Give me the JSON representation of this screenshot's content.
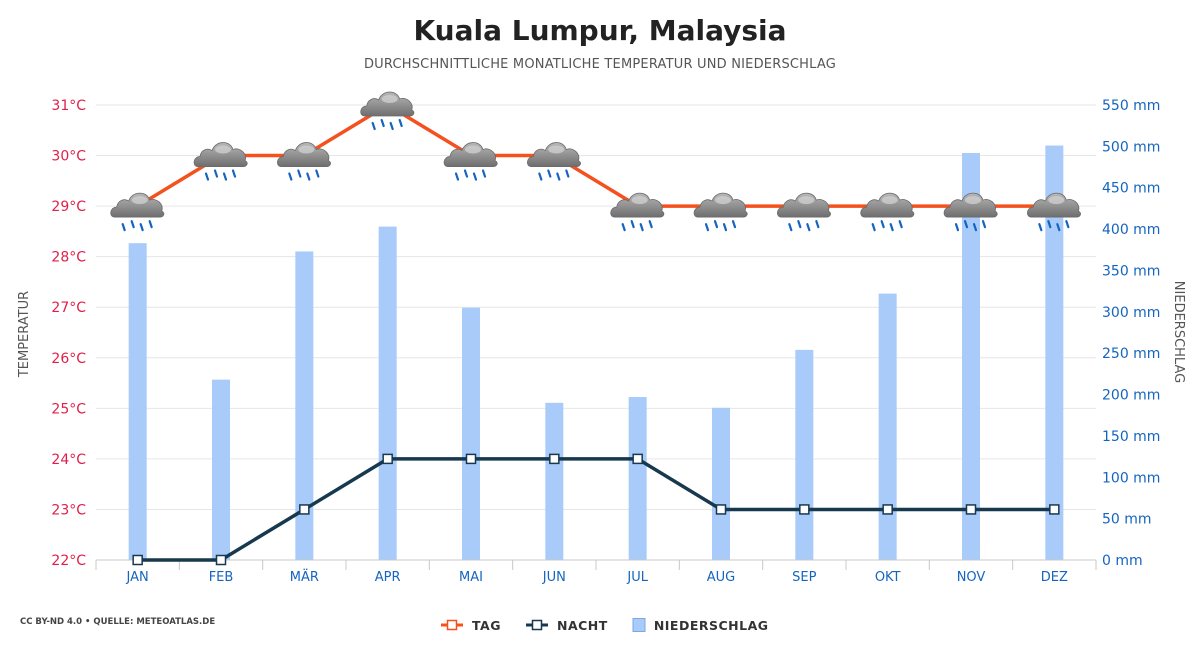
{
  "title": "Kuala Lumpur, Malaysia",
  "subtitle": "DURCHSCHNITTLICHE MONATLICHE TEMPERATUR UND NIEDERSCHLAG",
  "source": "CC BY-ND 4.0 • QUELLE: METEOATLAS.DE",
  "colors": {
    "tag": "#f4511e",
    "nacht": "#17394f",
    "niederschlag": "#a9cbfa",
    "temp_axis": "#e0204a",
    "precip_axis": "#1565c0",
    "month_axis": "#1565c0"
  },
  "legend": {
    "tag": "TAG",
    "nacht": "NACHT",
    "niederschlag": "NIEDERSCHLAG"
  },
  "chart_data": {
    "type": "bar",
    "categories": [
      "JAN",
      "FEB",
      "MÄR",
      "APR",
      "MAI",
      "JUN",
      "JUL",
      "AUG",
      "SEP",
      "OKT",
      "NOV",
      "DEZ"
    ],
    "y_left": {
      "label": "TEMPERATUR",
      "min": 22,
      "max": 31,
      "ticks": [
        "22°C",
        "23°C",
        "24°C",
        "25°C",
        "26°C",
        "27°C",
        "28°C",
        "29°C",
        "30°C",
        "31°C"
      ]
    },
    "y_right": {
      "label": "NIEDERSCHLAG",
      "min": 0,
      "max": 550,
      "ticks": [
        "0 mm",
        "50 mm",
        "100 mm",
        "150 mm",
        "200 mm",
        "250 mm",
        "300 mm",
        "350 mm",
        "400 mm",
        "450 mm",
        "500 mm",
        "550 mm"
      ]
    },
    "series": [
      {
        "name": "TAG",
        "type": "line",
        "axis": "left",
        "values": [
          29,
          30,
          30,
          31,
          30,
          30,
          29,
          29,
          29,
          29,
          29,
          29
        ]
      },
      {
        "name": "NACHT",
        "type": "line",
        "axis": "left",
        "values": [
          22,
          22,
          23,
          24,
          24,
          24,
          24,
          23,
          23,
          23,
          23,
          23
        ]
      },
      {
        "name": "NIEDERSCHLAG",
        "type": "bar",
        "axis": "right",
        "values": [
          383,
          218,
          373,
          403,
          305,
          190,
          197,
          184,
          254,
          322,
          492,
          501
        ]
      }
    ],
    "weather_icon": "rain-cloud-icon",
    "grid": true
  }
}
